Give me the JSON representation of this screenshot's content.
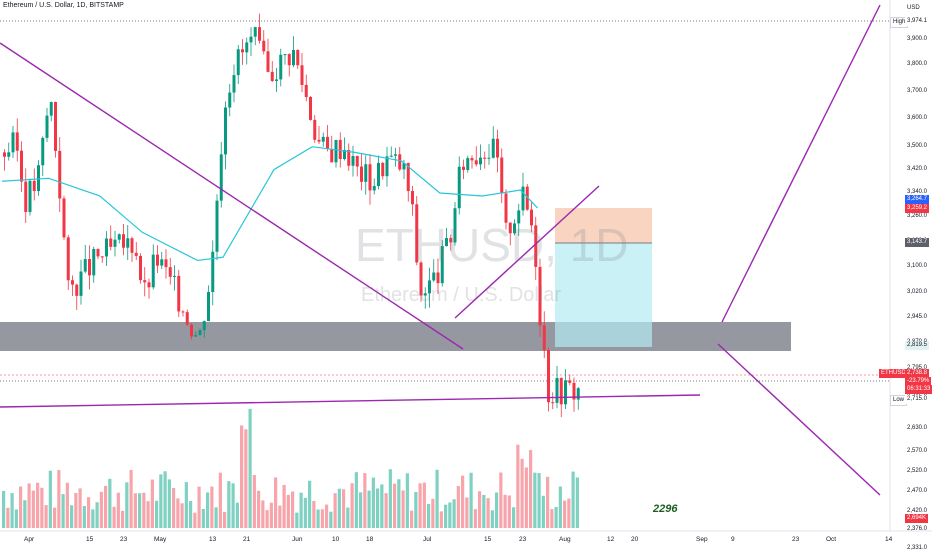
{
  "header": {
    "title": "Ethereum / U.S. Dollar, 1D, BITSTAMP"
  },
  "watermark": {
    "symbol": "ETHUSD, 1D",
    "name": "Ethereum / U.S. Dollar"
  },
  "currency_label": "USD",
  "bar_counter": "2296",
  "price_tags": {
    "high_label": "High",
    "high_value": "3,974.1",
    "blue_value": "3,264.7",
    "stop_value": "3,259.2",
    "entry_value": "3,143.7",
    "support_value": "2,819.5",
    "symbol_label": "ETHUSD",
    "current_price": "2,738.8",
    "change": "-23.79%",
    "countdown": "06:31:33",
    "low_label": "Low",
    "low_value": "2,715.0",
    "volume_value": "2,694K"
  },
  "colors": {
    "up": "#089981",
    "down": "#f23645",
    "ma": "#26c6da",
    "trend": "#9c27b0",
    "zone": "#787b86"
  },
  "chart_data": {
    "type": "candlestick",
    "y_scale": "log",
    "y_ticks": [
      "3,900.0",
      "3,800.0",
      "3,700.0",
      "3,600.0",
      "3,500.0",
      "3,420.0",
      "3,340.0",
      "3,260.0",
      "3,180.0",
      "3,100.0",
      "3,020.0",
      "2,945.0",
      "2,870.0",
      "2,795.0",
      "2,715.0",
      "2,630.0",
      "2,570.0",
      "2,520.0",
      "2,470.0",
      "2,420.0",
      "2,376.0",
      "2,331.0"
    ],
    "x_ticks": [
      "Apr",
      "15",
      "23",
      "May",
      "13",
      "21",
      "Jun",
      "10",
      "18",
      "Jul",
      "15",
      "23",
      "Aug",
      "12",
      "20",
      "Sep",
      "9",
      "23",
      "Oct",
      "14"
    ],
    "close_path": [
      [
        "2024-03-29",
        3480
      ],
      [
        "2024-04-01",
        3510
      ],
      [
        "2024-04-03",
        3320
      ],
      [
        "2024-04-06",
        3380
      ],
      [
        "2024-04-09",
        3690
      ],
      [
        "2024-04-12",
        3240
      ],
      [
        "2024-04-13",
        3020
      ],
      [
        "2024-04-17",
        3080
      ],
      [
        "2024-04-21",
        3140
      ],
      [
        "2024-04-25",
        3160
      ],
      [
        "2024-04-29",
        3180
      ],
      [
        "2024-05-01",
        3010
      ],
      [
        "2024-05-04",
        3130
      ],
      [
        "2024-05-09",
        3010
      ],
      [
        "2024-05-14",
        2880
      ],
      [
        "2024-05-17",
        3100
      ],
      [
        "2024-05-20",
        3660
      ],
      [
        "2024-05-22",
        3800
      ],
      [
        "2024-05-27",
        3910
      ],
      [
        "2024-05-30",
        3760
      ],
      [
        "2024-06-05",
        3860
      ],
      [
        "2024-06-08",
        3700
      ],
      [
        "2024-06-11",
        3520
      ],
      [
        "2024-06-13",
        3480
      ],
      [
        "2024-06-17",
        3510
      ],
      [
        "2024-06-20",
        3420
      ],
      [
        "2024-06-24",
        3380
      ],
      [
        "2024-06-27",
        3460
      ],
      [
        "2024-07-01",
        3430
      ],
      [
        "2024-07-03",
        3300
      ],
      [
        "2024-07-05",
        3020
      ],
      [
        "2024-07-08",
        3050
      ],
      [
        "2024-07-12",
        3180
      ],
      [
        "2024-07-15",
        3450
      ],
      [
        "2024-07-20",
        3500
      ],
      [
        "2024-07-23",
        3480
      ],
      [
        "2024-07-25",
        3200
      ],
      [
        "2024-07-29",
        3330
      ],
      [
        "2024-07-31",
        3260
      ],
      [
        "2024-08-01",
        3180
      ],
      [
        "2024-08-02",
        2990
      ],
      [
        "2024-08-03",
        2880
      ],
      [
        "2024-08-04",
        2738.8
      ]
    ],
    "moving_average": [
      [
        "2024-03-29",
        3380
      ],
      [
        "2024-04-09",
        3390
      ],
      [
        "2024-04-21",
        3330
      ],
      [
        "2024-05-01",
        3210
      ],
      [
        "2024-05-14",
        3120
      ],
      [
        "2024-05-20",
        3130
      ],
      [
        "2024-06-01",
        3420
      ],
      [
        "2024-06-10",
        3500
      ],
      [
        "2024-06-20",
        3480
      ],
      [
        "2024-07-01",
        3450
      ],
      [
        "2024-07-10",
        3340
      ],
      [
        "2024-07-20",
        3330
      ],
      [
        "2024-07-29",
        3350
      ],
      [
        "2024-08-02",
        3290
      ]
    ],
    "volume_axis_value": "2,694K",
    "horizontal_zone": {
      "from": 2819.5,
      "to": 2880
    },
    "trend_lines": [
      {
        "points": [
          [
            "2024-03-29",
            3800
          ],
          [
            "2024-07-08",
            2819.5
          ]
        ]
      },
      {
        "points": [
          [
            "2024-07-08",
            2880
          ],
          [
            "2024-08-05",
            3380
          ]
        ]
      },
      {
        "points": [
          [
            "2024-03-29",
            2700
          ],
          [
            "2024-08-22",
            2725
          ]
        ]
      },
      {
        "points": [
          [
            "2024-08-22",
            2870
          ],
          [
            "2024-10-08",
            4000
          ]
        ]
      },
      {
        "points": [
          [
            "2024-08-22",
            2819.5
          ],
          [
            "2024-10-08",
            2390
          ]
        ]
      }
    ],
    "position": {
      "type": "short",
      "entry": 3143.7,
      "stop": 3259.2,
      "target": 2819.5,
      "from": "2024-07-30",
      "to": "2024-08-12"
    },
    "high_line": 3974.1,
    "low_line": 2715.0
  }
}
